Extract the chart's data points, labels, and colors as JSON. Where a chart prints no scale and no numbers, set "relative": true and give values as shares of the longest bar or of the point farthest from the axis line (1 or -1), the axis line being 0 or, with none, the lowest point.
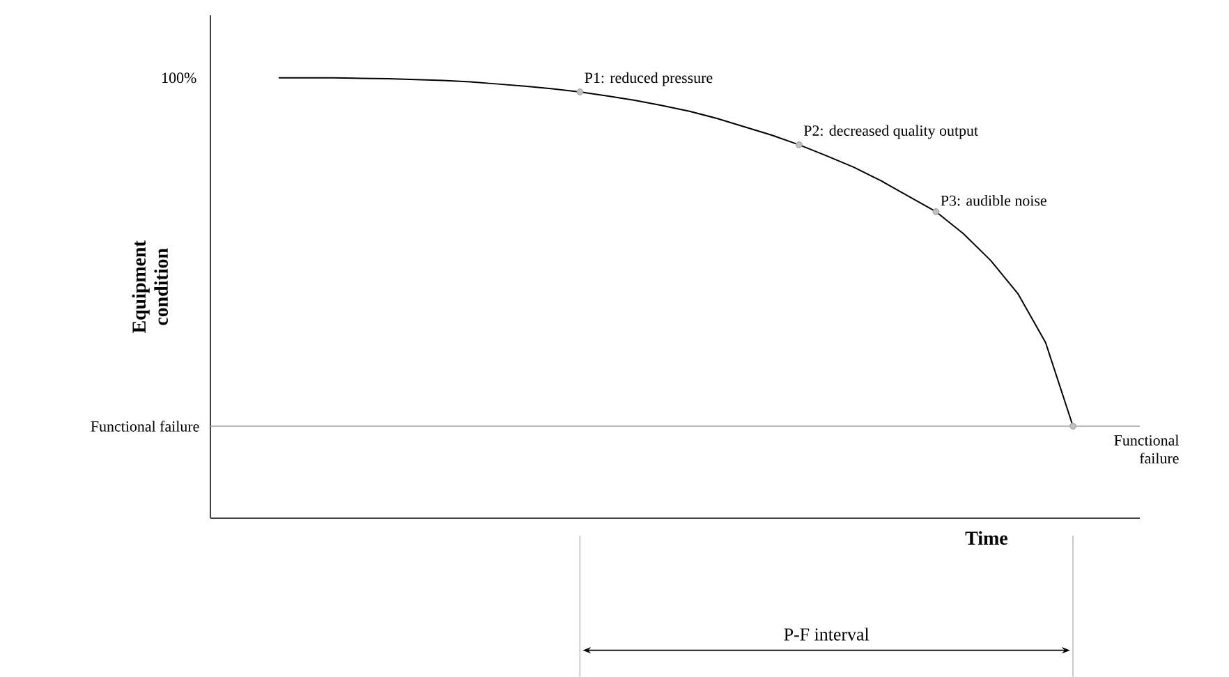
{
  "chart_data": {
    "type": "line",
    "relative": true,
    "xlabel": "Time",
    "ylabel": "Equipment condition",
    "categories": [
      null,
      null,
      null,
      null,
      null,
      null,
      null,
      null,
      null,
      null,
      null,
      null,
      null,
      null,
      null,
      null,
      null,
      null,
      null,
      null,
      null,
      null,
      null,
      null,
      null,
      null,
      null,
      null,
      null,
      null
    ],
    "series": [
      {
        "color": "#000000",
        "values": [
          1,
          1,
          1,
          0.999,
          0.998,
          0.996,
          0.994,
          0.991,
          0.986,
          0.981,
          0.975,
          0.968,
          0.959,
          0.949,
          0.937,
          0.924,
          0.908,
          0.889,
          0.87,
          0.848,
          0.823,
          0.797,
          0.766,
          0.731,
          0.696,
          0.646,
          0.585,
          0.509,
          0.399,
          0.209
        ]
      }
    ],
    "ref_lines": [
      {
        "axis": "y",
        "value": 0.209,
        "label": "Functional failure",
        "color": "#a6a6a6"
      }
    ],
    "annotations": [
      "100%",
      "P1: reduced pressure",
      "P2: decreased quality output",
      "P3: audible noise",
      "Functional failure",
      "P-F interval"
    ]
  }
}
